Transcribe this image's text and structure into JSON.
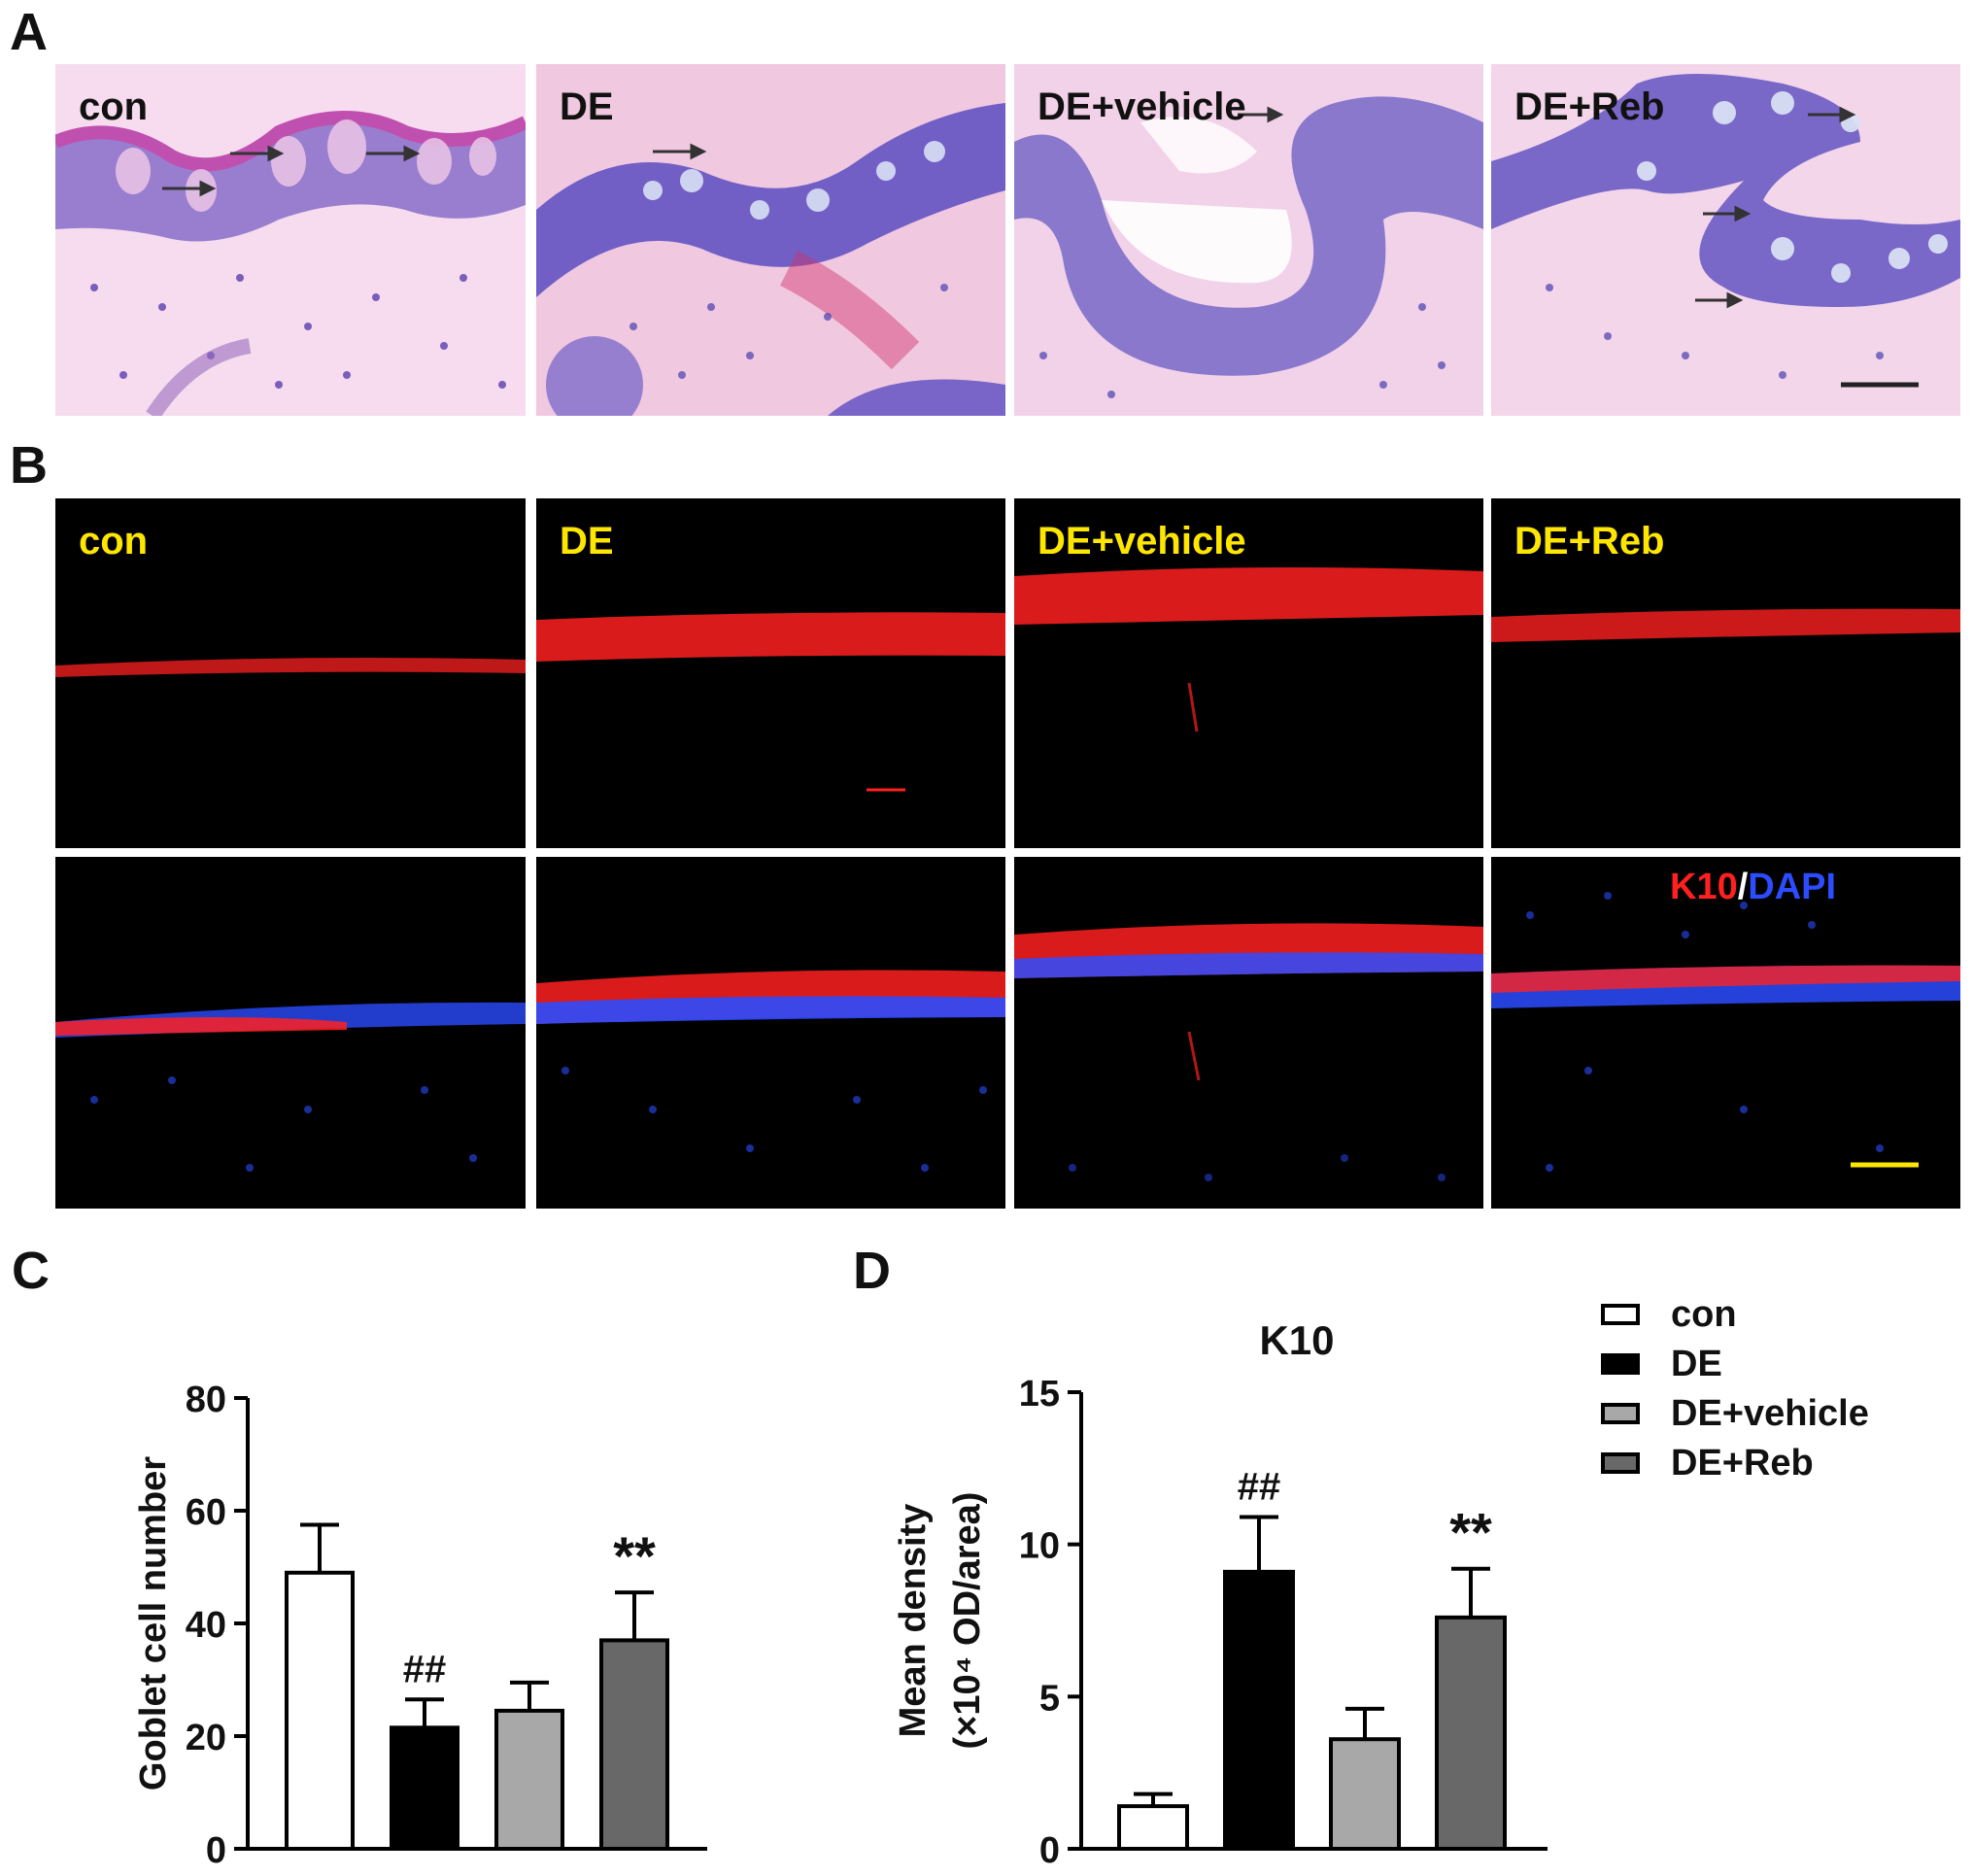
{
  "panels": {
    "a": {
      "letter": "A",
      "labels": [
        "con",
        "DE",
        "DE+vehicle",
        "DE+Reb"
      ]
    },
    "b": {
      "letter": "B",
      "labels": [
        "con",
        "DE",
        "DE+vehicle",
        "DE+Reb"
      ],
      "stain": {
        "k10": "K10",
        "sep": "/",
        "dapi": "DAPI"
      }
    },
    "c": {
      "letter": "C"
    },
    "d": {
      "letter": "D"
    }
  },
  "colors": {
    "he_bg": "#f4d6ea",
    "he_epi": "#6a58c8",
    "fl_bg": "#000000",
    "k10": "#ff2020",
    "dapi": "#2b4cff",
    "label_yellow": "#ffe600",
    "scale_bar_yellow": "#ffe600",
    "scale_bar_black": "#222222"
  },
  "legend": {
    "items": [
      {
        "label": "con",
        "color": "#ffffff"
      },
      {
        "label": "DE",
        "color": "#000000"
      },
      {
        "label": "DE+vehicle",
        "color": "#a8a8a8"
      },
      {
        "label": "DE+Reb",
        "color": "#686868"
      }
    ]
  },
  "chart_data": [
    {
      "type": "bar",
      "panel": "C",
      "title": "",
      "ylabel": "Goblet cell number",
      "categories": [
        "con",
        "DE",
        "DE+vehicle",
        "DE+Reb"
      ],
      "values": [
        49,
        21.5,
        24.5,
        37
      ],
      "errors": [
        8.5,
        5,
        5,
        8.5
      ],
      "annotations": [
        "",
        "##",
        "",
        "**"
      ],
      "ylim": [
        0,
        80
      ],
      "yticks": [
        0,
        20,
        40,
        60,
        80
      ],
      "colors": [
        "#ffffff",
        "#000000",
        "#a8a8a8",
        "#686868"
      ]
    },
    {
      "type": "bar",
      "panel": "D",
      "title": "K10",
      "ylabel": "Mean density",
      "ylabel2": "(×10⁴ OD/area)",
      "categories": [
        "con",
        "DE",
        "DE+vehicle",
        "DE+Reb"
      ],
      "values": [
        1.4,
        9.1,
        3.6,
        7.6
      ],
      "errors": [
        0.4,
        1.8,
        1.0,
        1.6
      ],
      "annotations": [
        "",
        "##",
        "",
        "**"
      ],
      "ylim": [
        0,
        15
      ],
      "yticks": [
        0,
        5,
        10,
        15
      ],
      "colors": [
        "#ffffff",
        "#000000",
        "#a8a8a8",
        "#686868"
      ]
    }
  ]
}
